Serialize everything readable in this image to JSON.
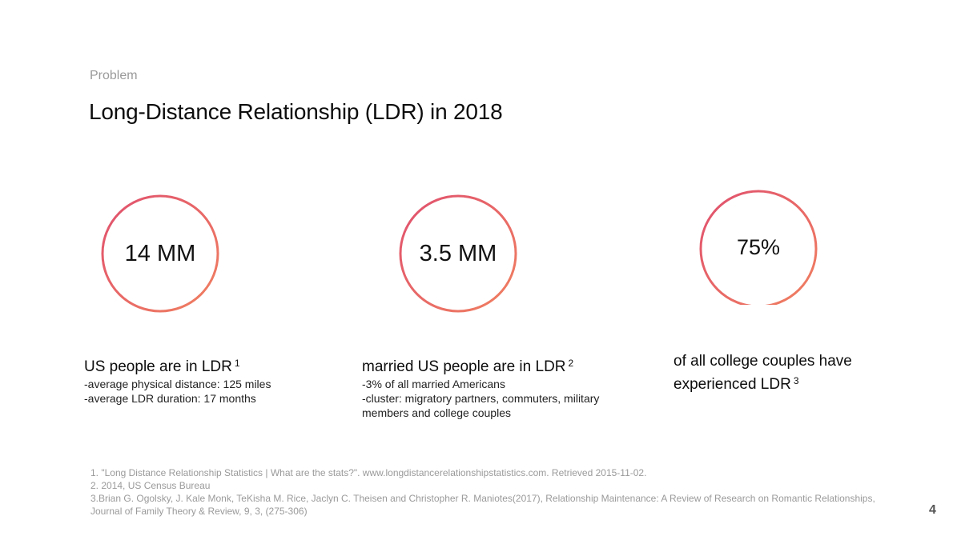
{
  "section_label": "Problem",
  "title": "Long-Distance Relationship (LDR) in 2018",
  "colors": {
    "ring_start": "#e0506e",
    "ring_end": "#f08060"
  },
  "stats": [
    {
      "value": "14 MM",
      "headline": "US people are in LDR",
      "ref": "1",
      "details": [
        "-average physical distance: 125 miles",
        "-average LDR duration: 17 months"
      ]
    },
    {
      "value": "3.5 MM",
      "headline": "married US people are in LDR",
      "ref": "2",
      "details": [
        "-3% of all married Americans",
        "-cluster: migratory partners, commuters, military members and college couples"
      ]
    },
    {
      "value": "75%",
      "headline": "of all college couples have experienced LDR",
      "ref": "3",
      "details": []
    }
  ],
  "footnotes": [
    "1. \"Long Distance Relationship Statistics | What are the stats?\". www.longdistancerelationshipstatistics.com. Retrieved 2015-11-02.",
    "2. 2014, US Census Bureau",
    "3.Brian G. Ogolsky, J. Kale Monk, TeKisha M. Rice, Jaclyn C. Theisen and Christopher R. Maniotes(2017), Relationship Maintenance: A Review of Research on Romantic Relationships, Journal of Family Theory & Review, 9, 3, (275-306)"
  ],
  "page_number": "4"
}
